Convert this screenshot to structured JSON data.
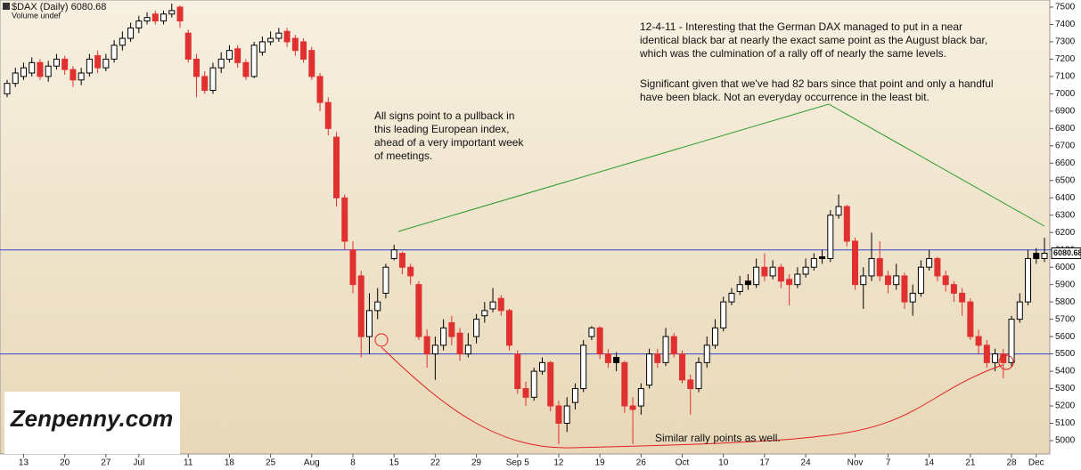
{
  "chart_data": {
    "type": "candlestick",
    "title": "$DAX (Daily) 6080.68",
    "subtitle": "Volume undef",
    "last_price_label": "6080.68",
    "categories": [
      null,
      null,
      "13",
      null,
      null,
      null,
      null,
      "20",
      null,
      null,
      null,
      null,
      "27",
      null,
      null,
      null,
      "Jul",
      null,
      null,
      null,
      null,
      null,
      "11",
      null,
      null,
      null,
      null,
      "18",
      null,
      null,
      null,
      null,
      "25",
      null,
      null,
      null,
      null,
      "Aug",
      null,
      null,
      null,
      null,
      "8",
      null,
      null,
      null,
      null,
      "15",
      null,
      null,
      null,
      null,
      "22",
      null,
      null,
      null,
      null,
      "29",
      null,
      null,
      null,
      null,
      "Sep 5",
      null,
      null,
      null,
      null,
      "12",
      null,
      null,
      null,
      null,
      "19",
      null,
      null,
      null,
      null,
      "26",
      null,
      null,
      null,
      null,
      "Oct",
      null,
      null,
      null,
      null,
      "10",
      null,
      null,
      null,
      null,
      "17",
      null,
      null,
      null,
      null,
      "24",
      null,
      null,
      null,
      null,
      null,
      "Nov",
      null,
      null,
      null,
      "7",
      null,
      null,
      null,
      null,
      "14",
      null,
      null,
      null,
      null,
      "21",
      null,
      null,
      null,
      null,
      "28",
      null,
      null,
      "Dec",
      null
    ],
    "open": [
      7000,
      7060,
      7100,
      7120,
      7180,
      7100,
      7160,
      7200,
      7140,
      7080,
      7120,
      7220,
      7150,
      7200,
      7280,
      7320,
      7380,
      7420,
      7460,
      7420,
      7460,
      7500,
      7350,
      7200,
      7100,
      7020,
      7150,
      7200,
      7260,
      7180,
      7100,
      7240,
      7300,
      7320,
      7360,
      7320,
      7300,
      7250,
      7100,
      6950,
      6750,
      6400,
      6100,
      5950,
      5600,
      5750,
      5850,
      6050,
      6080,
      6000,
      5900,
      5600,
      5500,
      5550,
      5680,
      5620,
      5500,
      5600,
      5720,
      5760,
      5820,
      5750,
      5500,
      5300,
      5250,
      5400,
      5450,
      5200,
      5100,
      5220,
      5300,
      5600,
      5650,
      5500,
      5480,
      5450,
      5200,
      5200,
      5320,
      5500,
      5450,
      5600,
      5500,
      5350,
      5300,
      5450,
      5550,
      5650,
      5800,
      5860,
      5920,
      5900,
      6000,
      5950,
      6000,
      5930,
      5900,
      5960,
      6000,
      6060,
      6050,
      6300,
      6350,
      6150,
      5900,
      5950,
      6050,
      5950,
      5900,
      5950,
      5800,
      5850,
      6000,
      6050,
      5950,
      5900,
      5850,
      5800,
      5600,
      5550,
      5450,
      5500,
      5450,
      5700,
      5800,
      6080,
      6050
    ],
    "high": [
      7080,
      7150,
      7180,
      7210,
      7200,
      7190,
      7230,
      7220,
      7160,
      7150,
      7230,
      7250,
      7230,
      7310,
      7360,
      7410,
      7450,
      7470,
      7480,
      7480,
      7520,
      7510,
      7370,
      7230,
      7130,
      7180,
      7240,
      7280,
      7280,
      7200,
      7300,
      7330,
      7360,
      7380,
      7380,
      7340,
      7320,
      7270,
      7120,
      6980,
      6780,
      6420,
      6150,
      5980,
      5850,
      5880,
      6020,
      6130,
      6090,
      6020,
      5920,
      5640,
      5600,
      5700,
      5720,
      5650,
      5620,
      5730,
      5800,
      5880,
      5840,
      5760,
      5520,
      5340,
      5420,
      5480,
      5460,
      5230,
      5250,
      5330,
      5580,
      5660,
      5660,
      5530,
      5510,
      5460,
      5250,
      5330,
      5530,
      5530,
      5650,
      5620,
      5520,
      5380,
      5480,
      5600,
      5700,
      5830,
      5880,
      5950,
      5960,
      6050,
      6080,
      6040,
      6020,
      5960,
      6000,
      6050,
      6080,
      6100,
      6330,
      6420,
      6360,
      6170,
      6000,
      6200,
      6150,
      5980,
      6020,
      5970,
      5900,
      6040,
      6100,
      6060,
      5980,
      5920,
      5880,
      5820,
      5640,
      5580,
      5530,
      5530,
      5720,
      5850,
      6100,
      6110,
      6170
    ],
    "low": [
      6980,
      7040,
      7080,
      7100,
      7080,
      7070,
      7140,
      7110,
      7040,
      7050,
      7100,
      7120,
      7130,
      7180,
      7250,
      7300,
      7350,
      7400,
      7400,
      7400,
      7440,
      7380,
      7180,
      6980,
      7000,
      7000,
      7120,
      7180,
      7150,
      7080,
      7090,
      7220,
      7280,
      7300,
      7270,
      7220,
      7180,
      7080,
      6900,
      6760,
      6350,
      6100,
      5850,
      5480,
      5500,
      5700,
      5820,
      6040,
      5960,
      5900,
      5580,
      5420,
      5350,
      5520,
      5550,
      5460,
      5480,
      5560,
      5680,
      5740,
      5720,
      5520,
      5270,
      5200,
      5230,
      5380,
      5170,
      4980,
      5050,
      5180,
      5280,
      5580,
      5470,
      5420,
      5400,
      5160,
      4980,
      5150,
      5300,
      5420,
      5430,
      5480,
      5330,
      5150,
      5280,
      5420,
      5530,
      5630,
      5780,
      5840,
      5870,
      5880,
      5920,
      5930,
      5880,
      5780,
      5880,
      5940,
      5980,
      6020,
      6030,
      6280,
      6120,
      5870,
      5760,
      5920,
      5920,
      5850,
      5870,
      5760,
      5720,
      5830,
      5980,
      5920,
      5860,
      5800,
      5720,
      5580,
      5500,
      5420,
      5400,
      5360,
      5430,
      5680,
      5780,
      6020,
      6030
    ],
    "close": [
      7060,
      7120,
      7150,
      7180,
      7100,
      7160,
      7200,
      7140,
      7080,
      7120,
      7200,
      7150,
      7200,
      7280,
      7320,
      7380,
      7420,
      7440,
      7420,
      7460,
      7480,
      7420,
      7200,
      7100,
      7020,
      7150,
      7200,
      7250,
      7180,
      7100,
      7280,
      7300,
      7320,
      7350,
      7300,
      7250,
      7200,
      7100,
      6950,
      6800,
      6400,
      6150,
      5900,
      5600,
      5750,
      5800,
      6000,
      6100,
      6000,
      5950,
      5600,
      5500,
      5550,
      5650,
      5600,
      5500,
      5550,
      5700,
      5750,
      5800,
      5750,
      5550,
      5300,
      5250,
      5400,
      5450,
      5200,
      5100,
      5200,
      5300,
      5550,
      5650,
      5500,
      5450,
      5450,
      5200,
      5180,
      5300,
      5500,
      5450,
      5600,
      5500,
      5350,
      5300,
      5450,
      5550,
      5650,
      5800,
      5850,
      5900,
      5900,
      6000,
      5950,
      6000,
      5920,
      5900,
      5960,
      6000,
      6050,
      6050,
      6300,
      6350,
      6150,
      5900,
      5950,
      6050,
      5950,
      5900,
      5950,
      5800,
      5850,
      6000,
      6050,
      5950,
      5900,
      5850,
      5800,
      5600,
      5550,
      5450,
      5500,
      5450,
      5700,
      5800,
      6050,
      6050,
      6080.68
    ],
    "levels": [
      6100,
      5500
    ],
    "ylim": [
      4923,
      7541
    ],
    "yticks": [
      5000,
      5100,
      5200,
      5300,
      5400,
      5500,
      5600,
      5700,
      5800,
      5900,
      6000,
      6100,
      6200,
      6300,
      6400,
      6500,
      6600,
      6700,
      6800,
      6900,
      7000,
      7100,
      7200,
      7300,
      7400,
      7500
    ],
    "up_color": "#ffffff",
    "down_color": "#e03030",
    "grid": false,
    "annotations": {
      "pullback": [
        "All signs point to a pullback in",
        "this leading European index,",
        "ahead of a very important week",
        "of meetings."
      ],
      "comment": [
        "12-4-11 - Interesting that the German DAX managed to put in a near",
        "identical black bar at nearly the exact same point as the August black bar,",
        "which was the culmination of a rally off of nearly the same levels."
      ],
      "comment2": [
        "Significant given that we've had 82 bars since that point and only a handful",
        "have been black. Not an everyday occurrence in the least bit."
      ],
      "rally": "Similar rally points as well."
    },
    "logo": "Zenpenny.com"
  }
}
